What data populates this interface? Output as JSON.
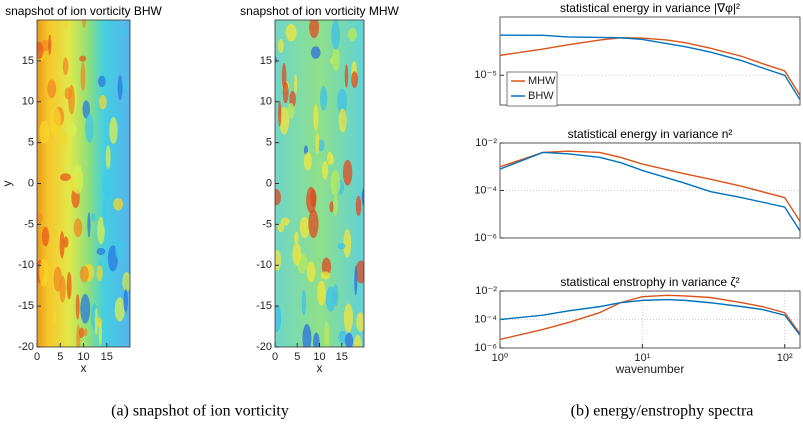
{
  "chart_data": [
    {
      "type": "image",
      "title": "snapshot of ion vorticity  BHW",
      "xlabel": "x",
      "ylabel": "y",
      "xlim": [
        0,
        20
      ],
      "ylim": [
        -20,
        20
      ],
      "xticks": [
        0,
        5,
        10,
        15
      ],
      "yticks": [
        -20,
        -15,
        -10,
        -5,
        0,
        5,
        10,
        15
      ]
    },
    {
      "type": "image",
      "title": "snapshot of ion vorticity  MHW",
      "xlabel": "x",
      "xlim": [
        0,
        20
      ],
      "ylim": [
        -20,
        20
      ],
      "xticks": [
        0,
        5,
        10,
        15
      ],
      "yticks": [
        -20,
        -15,
        -10,
        -5,
        0,
        5,
        10,
        15
      ]
    },
    {
      "type": "line",
      "title": "statistical energy in variance |∇φ|²",
      "xlog": true,
      "ylog": true,
      "grid": true,
      "legend": "upper left",
      "xlim": [
        1,
        128
      ],
      "ylim": [
        6e-07,
        0.0025
      ],
      "yticks": [
        {
          "value": 1e-05,
          "label": "10⁻⁵"
        }
      ],
      "x": [
        1,
        2,
        3,
        5,
        7,
        10,
        15,
        20,
        30,
        50,
        70,
        100,
        128
      ],
      "series": [
        {
          "name": "MHW",
          "color": "#d95319",
          "values": [
            6.6e-05,
            0.00012,
            0.00018,
            0.00028,
            0.00035,
            0.00034,
            0.00028,
            0.00022,
            0.00013,
            6e-05,
            3e-05,
            1.5e-05,
            1.5e-06
          ]
        },
        {
          "name": "BHW",
          "color": "#0072bd",
          "values": [
            0.00045,
            0.00044,
            0.00038,
            0.00036,
            0.00035,
            0.0003,
            0.0002,
            0.00015,
            9e-05,
            4e-05,
            2e-05,
            1e-05,
            1e-06
          ]
        }
      ]
    },
    {
      "type": "line",
      "title": "statistical energy in variance n²",
      "xlog": true,
      "ylog": true,
      "grid": true,
      "xlim": [
        1,
        128
      ],
      "ylim": [
        1e-06,
        0.01
      ],
      "yticks": [
        {
          "value": 0.01,
          "label": "10⁻²"
        },
        {
          "value": 0.0001,
          "label": "10⁻⁴"
        },
        {
          "value": 1e-06,
          "label": "10⁻⁶"
        }
      ],
      "x": [
        1,
        2,
        3,
        5,
        7,
        10,
        20,
        30,
        50,
        100,
        128
      ],
      "series": [
        {
          "name": "MHW",
          "color": "#d95319",
          "values": [
            0.001,
            0.004,
            0.0045,
            0.004,
            0.0025,
            0.0013,
            0.0005,
            0.0003,
            0.00015,
            5e-05,
            5e-06
          ]
        },
        {
          "name": "BHW",
          "color": "#0072bd",
          "values": [
            0.0008,
            0.004,
            0.0035,
            0.0025,
            0.0015,
            0.0007,
            0.0002,
            9e-05,
            5e-05,
            2e-05,
            2e-06
          ]
        }
      ]
    },
    {
      "type": "line",
      "title": "statistical enstrophy in variance ζ²",
      "xlabel": "wavenumber",
      "xlog": true,
      "ylog": true,
      "grid": true,
      "xlim": [
        1,
        128
      ],
      "ylim": [
        1e-06,
        0.01
      ],
      "xticks": [
        {
          "value": 1,
          "label": "10⁰"
        },
        {
          "value": 10,
          "label": "10¹"
        },
        {
          "value": 100,
          "label": "10²"
        }
      ],
      "yticks": [
        {
          "value": 0.01,
          "label": "10⁻²"
        },
        {
          "value": 0.0001,
          "label": "10⁻⁴"
        },
        {
          "value": 1e-06,
          "label": "10⁻⁶"
        }
      ],
      "x": [
        1,
        2,
        3,
        5,
        7,
        10,
        15,
        20,
        30,
        50,
        70,
        100,
        128
      ],
      "series": [
        {
          "name": "MHW",
          "color": "#d95319",
          "values": [
            4e-06,
            2e-05,
            6e-05,
            0.0003,
            0.0015,
            0.004,
            0.005,
            0.0045,
            0.0035,
            0.0015,
            0.0008,
            0.0003,
            1e-05
          ]
        },
        {
          "name": "BHW",
          "color": "#0072bd",
          "values": [
            0.0001,
            0.0002,
            0.0004,
            0.0008,
            0.0015,
            0.0022,
            0.0025,
            0.0022,
            0.0015,
            0.0008,
            0.0005,
            0.0002,
            8e-06
          ]
        }
      ]
    }
  ],
  "captions": [
    "(a) snapshot of ion vorticity",
    "(b) energy/enstrophy spectra"
  ]
}
